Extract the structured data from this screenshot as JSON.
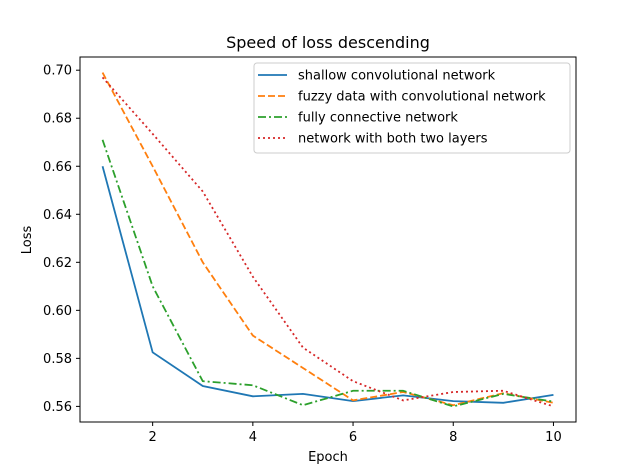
{
  "chart_data": {
    "type": "line",
    "title": "Speed of loss descending",
    "xlabel": "Epoch",
    "ylabel": "Loss",
    "xlim": [
      0.55,
      10.45
    ],
    "ylim": [
      0.5535,
      0.7055
    ],
    "xticks": [
      2,
      4,
      6,
      8,
      10
    ],
    "yticks": [
      0.56,
      0.58,
      0.6,
      0.62,
      0.64,
      0.66,
      0.68,
      0.7
    ],
    "ytick_labels": [
      "0.56",
      "0.58",
      "0.60",
      "0.62",
      "0.64",
      "0.66",
      "0.68",
      "0.70"
    ],
    "xtick_labels": [
      "2",
      "4",
      "6",
      "8",
      "10"
    ],
    "grid": false,
    "legend_position": "upper-right",
    "x": [
      1,
      2,
      3,
      4,
      5,
      6,
      7,
      8,
      9,
      10
    ],
    "series": [
      {
        "name": "shallow convolutional network",
        "color": "#1f77b4",
        "style": "solid",
        "values": [
          0.66,
          0.5825,
          0.5685,
          0.5642,
          0.5652,
          0.5622,
          0.5646,
          0.5622,
          0.5615,
          0.5648
        ]
      },
      {
        "name": "fuzzy data with convolutional network",
        "color": "#ff7f0e",
        "style": "dashed",
        "values": [
          0.699,
          0.66,
          0.62,
          0.5895,
          0.576,
          0.5625,
          0.566,
          0.5605,
          0.5655,
          0.5615
        ]
      },
      {
        "name": "fully connective network",
        "color": "#2ca02c",
        "style": "dashdot",
        "values": [
          0.671,
          0.61,
          0.5705,
          0.5688,
          0.5605,
          0.5665,
          0.5665,
          0.56,
          0.5652,
          0.562
        ]
      },
      {
        "name": "network with both two layers",
        "color": "#d62728",
        "style": "dotted",
        "values": [
          0.697,
          0.6735,
          0.6495,
          0.614,
          0.5845,
          0.5705,
          0.5625,
          0.566,
          0.5665,
          0.56
        ]
      }
    ]
  }
}
